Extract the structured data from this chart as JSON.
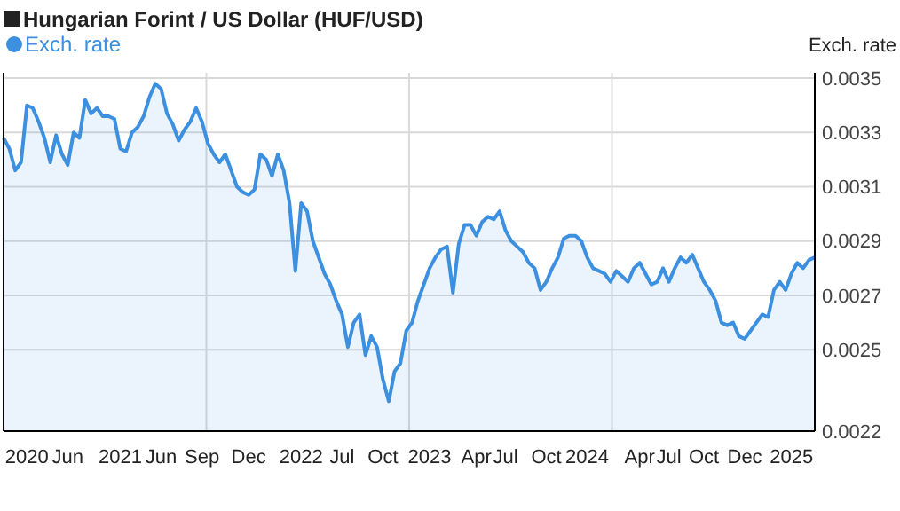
{
  "chart_data": {
    "type": "area",
    "title": "Hungarian Forint / US Dollar (HUF/USD)",
    "ylabel": "Exch. rate",
    "categories": [
      null,
      null,
      null,
      null,
      "2020",
      null,
      null,
      null,
      null,
      null,
      null,
      "Jun",
      null,
      null,
      null,
      null,
      null,
      null,
      null,
      null,
      "2021",
      null,
      null,
      null,
      null,
      null,
      null,
      "Jun",
      null,
      null,
      null,
      null,
      null,
      null,
      "Sep",
      null,
      null,
      null,
      null,
      null,
      null,
      null,
      "Dec",
      null,
      null,
      null,
      null,
      null,
      null,
      null,
      null,
      "2022",
      null,
      null,
      null,
      null,
      null,
      null,
      "Jul",
      null,
      null,
      null,
      null,
      null,
      null,
      "Oct",
      null,
      null,
      null,
      null,
      null,
      null,
      null,
      "2023",
      null,
      null,
      null,
      null,
      null,
      null,
      null,
      "Apr",
      null,
      null,
      null,
      null,
      "Jul",
      null,
      null,
      null,
      null,
      null,
      null,
      "Oct",
      null,
      null,
      null,
      null,
      null,
      null,
      "2024",
      null,
      null,
      null,
      null,
      null,
      null,
      null,
      null,
      "Apr",
      null,
      null,
      null,
      null,
      "Jul",
      null,
      null,
      null,
      null,
      null,
      "Oct",
      null,
      null,
      null,
      null,
      null,
      null,
      "Dec",
      null,
      null,
      null,
      null,
      null,
      null,
      null,
      "2025",
      null,
      null,
      null,
      null
    ],
    "series": [
      {
        "name": "Exch. rate",
        "color": "#3d8fe0",
        "values": [
          0.00328,
          0.00324,
          0.00316,
          0.00319,
          0.0034,
          0.00339,
          0.00334,
          0.00328,
          0.00319,
          0.00329,
          0.00322,
          0.00318,
          0.0033,
          0.00328,
          0.00342,
          0.00337,
          0.00339,
          0.00336,
          0.00336,
          0.00335,
          0.00324,
          0.00323,
          0.0033,
          0.00332,
          0.00336,
          0.00343,
          0.00348,
          0.00346,
          0.00337,
          0.00333,
          0.00327,
          0.00331,
          0.00334,
          0.00339,
          0.00334,
          0.00326,
          0.00322,
          0.00319,
          0.00322,
          0.00316,
          0.0031,
          0.00308,
          0.00307,
          0.00309,
          0.00322,
          0.0032,
          0.00314,
          0.00322,
          0.00316,
          0.00304,
          0.00279,
          0.00304,
          0.00301,
          0.0029,
          0.00284,
          0.00278,
          0.00274,
          0.00268,
          0.00263,
          0.00251,
          0.0026,
          0.00263,
          0.00248,
          0.00255,
          0.00251,
          0.00239,
          0.00231,
          0.00242,
          0.00245,
          0.00257,
          0.0026,
          0.00268,
          0.00274,
          0.0028,
          0.00284,
          0.00287,
          0.00288,
          0.00271,
          0.00289,
          0.00296,
          0.00296,
          0.00292,
          0.00297,
          0.00299,
          0.00298,
          0.00301,
          0.00294,
          0.0029,
          0.00288,
          0.00286,
          0.00282,
          0.0028,
          0.00272,
          0.00275,
          0.0028,
          0.00284,
          0.00291,
          0.00292,
          0.00292,
          0.0029,
          0.00284,
          0.0028,
          0.00279,
          0.00278,
          0.00275,
          0.00279,
          0.00277,
          0.00275,
          0.0028,
          0.00282,
          0.00278,
          0.00274,
          0.00275,
          0.0028,
          0.00275,
          0.0028,
          0.00284,
          0.00282,
          0.00285,
          0.0028,
          0.00275,
          0.00272,
          0.00268,
          0.0026,
          0.00259,
          0.0026,
          0.00255,
          0.00254,
          0.00257,
          0.0026,
          0.00263,
          0.00262,
          0.00272,
          0.00275,
          0.00272,
          0.00278,
          0.00282,
          0.0028,
          0.00283,
          0.00284
        ]
      }
    ],
    "ylim": [
      0.0022,
      0.00352
    ],
    "yticks": [
      0.0022,
      0.0025,
      0.0027,
      0.0029,
      0.0031,
      0.0033,
      0.0035
    ],
    "grid": true,
    "legend": "top left"
  }
}
